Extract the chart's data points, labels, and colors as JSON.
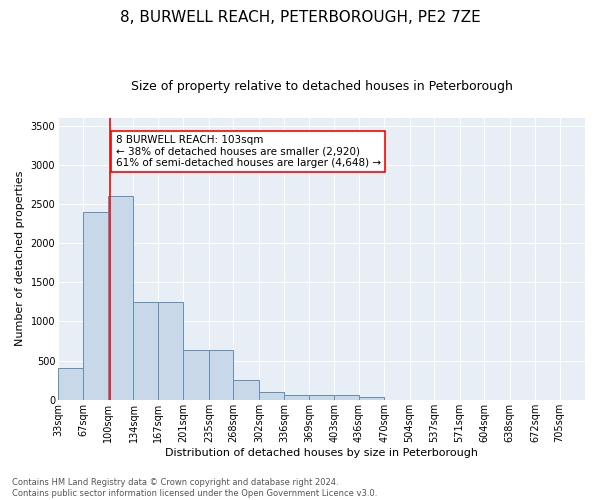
{
  "title": "8, BURWELL REACH, PETERBOROUGH, PE2 7ZE",
  "subtitle": "Size of property relative to detached houses in Peterborough",
  "xlabel": "Distribution of detached houses by size in Peterborough",
  "ylabel": "Number of detached properties",
  "footer_line1": "Contains HM Land Registry data © Crown copyright and database right 2024.",
  "footer_line2": "Contains public sector information licensed under the Open Government Licence v3.0.",
  "annotation_line1": "8 BURWELL REACH: 103sqm",
  "annotation_line2": "← 38% of detached houses are smaller (2,920)",
  "annotation_line3": "61% of semi-detached houses are larger (4,648) →",
  "bar_color": "#c8d8e8",
  "bar_edge_color": "#6090b8",
  "redline_x": 103,
  "categories": [
    "33sqm",
    "67sqm",
    "100sqm",
    "134sqm",
    "167sqm",
    "201sqm",
    "235sqm",
    "268sqm",
    "302sqm",
    "336sqm",
    "369sqm",
    "403sqm",
    "436sqm",
    "470sqm",
    "504sqm",
    "537sqm",
    "571sqm",
    "604sqm",
    "638sqm",
    "672sqm",
    "705sqm"
  ],
  "bin_edges": [
    33,
    67,
    100,
    134,
    167,
    201,
    235,
    268,
    302,
    336,
    369,
    403,
    436,
    470,
    504,
    537,
    571,
    604,
    638,
    672,
    705
  ],
  "values": [
    400,
    2400,
    2600,
    1250,
    1250,
    640,
    640,
    250,
    100,
    65,
    60,
    55,
    35,
    0,
    0,
    0,
    0,
    0,
    0,
    0
  ],
  "ylim": [
    0,
    3600
  ],
  "yticks": [
    0,
    500,
    1000,
    1500,
    2000,
    2500,
    3000,
    3500
  ],
  "plot_bg_color": "#e8eef5",
  "title_fontsize": 11,
  "subtitle_fontsize": 9,
  "ylabel_fontsize": 8,
  "xlabel_fontsize": 8,
  "tick_fontsize": 7,
  "footer_fontsize": 6,
  "annotation_fontsize": 7.5
}
